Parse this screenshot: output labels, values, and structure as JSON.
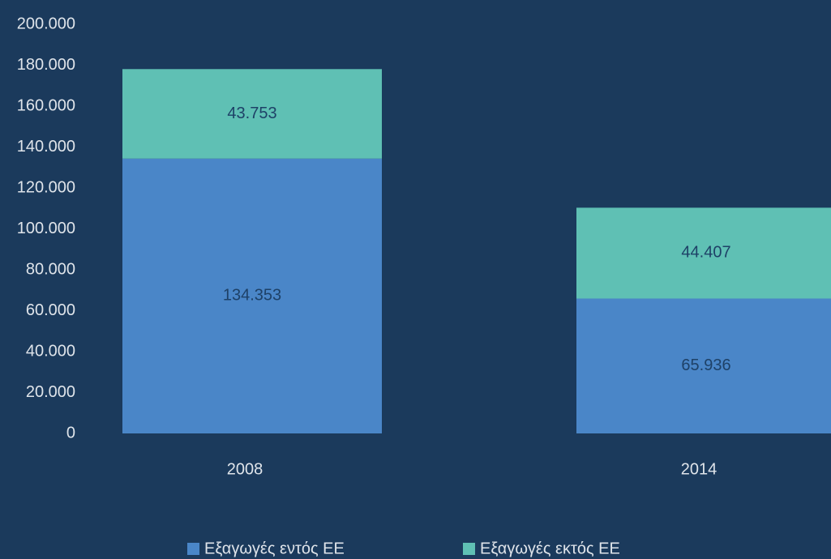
{
  "chart_data": {
    "type": "stacked_bar",
    "categories": [
      "2008",
      "2014"
    ],
    "series": [
      {
        "name": "Εξαγωγές εντός ΕΕ",
        "color": "#4a86c8",
        "values": [
          134353,
          65936
        ],
        "value_labels": [
          "134.353",
          "65.936"
        ]
      },
      {
        "name": "Εξαγωγές εκτός ΕΕ",
        "color": "#5fc0b4",
        "values": [
          43753,
          44407
        ],
        "value_labels": [
          "43.753",
          "44.407"
        ]
      }
    ],
    "ylim": [
      0,
      200000
    ],
    "yticks": [
      0,
      {
        "value": 20000,
        "label": "20.000"
      },
      {
        "value": 40000,
        "label": "40.000"
      },
      {
        "value": 60000,
        "label": "60.000"
      },
      {
        "value": 80000,
        "label": "80.000"
      },
      {
        "value": 100000,
        "label": "100.000"
      },
      {
        "value": 120000,
        "label": "120.000"
      },
      {
        "value": 140000,
        "label": "140.000"
      },
      {
        "value": 160000,
        "label": "160.000"
      },
      {
        "value": 180000,
        "label": "180.000"
      },
      {
        "value": 200000,
        "label": "200.000"
      }
    ],
    "legend": "bottom"
  }
}
